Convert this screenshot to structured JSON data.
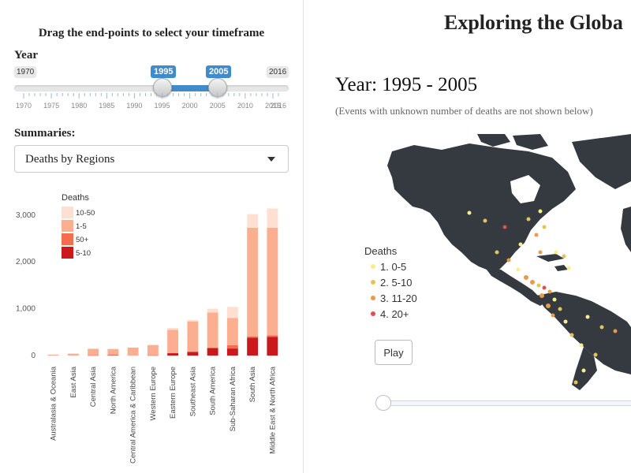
{
  "sidebar": {
    "title": "Drag the end-points to select your timeframe",
    "year_label": "Year",
    "slider": {
      "min_label": "1970",
      "max_label": "2016",
      "from_label": "1995",
      "to_label": "2005",
      "ticks": [
        "1970",
        "1975",
        "1980",
        "1985",
        "1990",
        "1995",
        "2000",
        "2005",
        "2010",
        "2015",
        "2016"
      ]
    },
    "summaries_label": "Summaries:",
    "select_value": "Deaths by Regions"
  },
  "chart_data": {
    "type": "bar",
    "stacked": true,
    "legend_title": "Deaths",
    "categories": [
      "Australasia & Oceania",
      "East Asia",
      "Central Asia",
      "North America",
      "Central America & Caribbean",
      "Western Europe",
      "Eastern Europe",
      "Southeast Asia",
      "South America",
      "Sub-Saharan Africa",
      "South Asia",
      "Middle East & North Africa"
    ],
    "series": [
      {
        "name": "5-10",
        "color": "#cb181d",
        "values": [
          0,
          0,
          5,
          10,
          0,
          5,
          50,
          80,
          160,
          150,
          380,
          400
        ]
      },
      {
        "name": "50+",
        "color": "#f46d4e",
        "values": [
          0,
          0,
          0,
          0,
          0,
          0,
          0,
          0,
          0,
          70,
          30,
          30
        ]
      },
      {
        "name": "1-5",
        "color": "#fcae91",
        "values": [
          20,
          40,
          140,
          130,
          170,
          220,
          500,
          650,
          760,
          580,
          2320,
          2300
        ]
      },
      {
        "name": "10-50",
        "color": "#fde0d2",
        "values": [
          0,
          0,
          0,
          0,
          0,
          0,
          40,
          30,
          80,
          240,
          290,
          410
        ]
      }
    ],
    "yticks": [
      "0",
      "1,000",
      "2,000",
      "3,000"
    ],
    "ylim": [
      0,
      3300
    ]
  },
  "main": {
    "title": "Exploring the Globa",
    "year_title": "Year: 1995 - 2005",
    "note": "(Events with unknown number of deaths are not shown below)",
    "legend": {
      "title": "Deaths",
      "items": [
        {
          "label": "1. 0-5",
          "color": "#f7ef8a"
        },
        {
          "label": "2. 5-10",
          "color": "#e3c35a"
        },
        {
          "label": "3. 11-20",
          "color": "#e89a4d"
        },
        {
          "label": "4. 20+",
          "color": "#d9534f"
        }
      ]
    },
    "play_label": "Play"
  }
}
